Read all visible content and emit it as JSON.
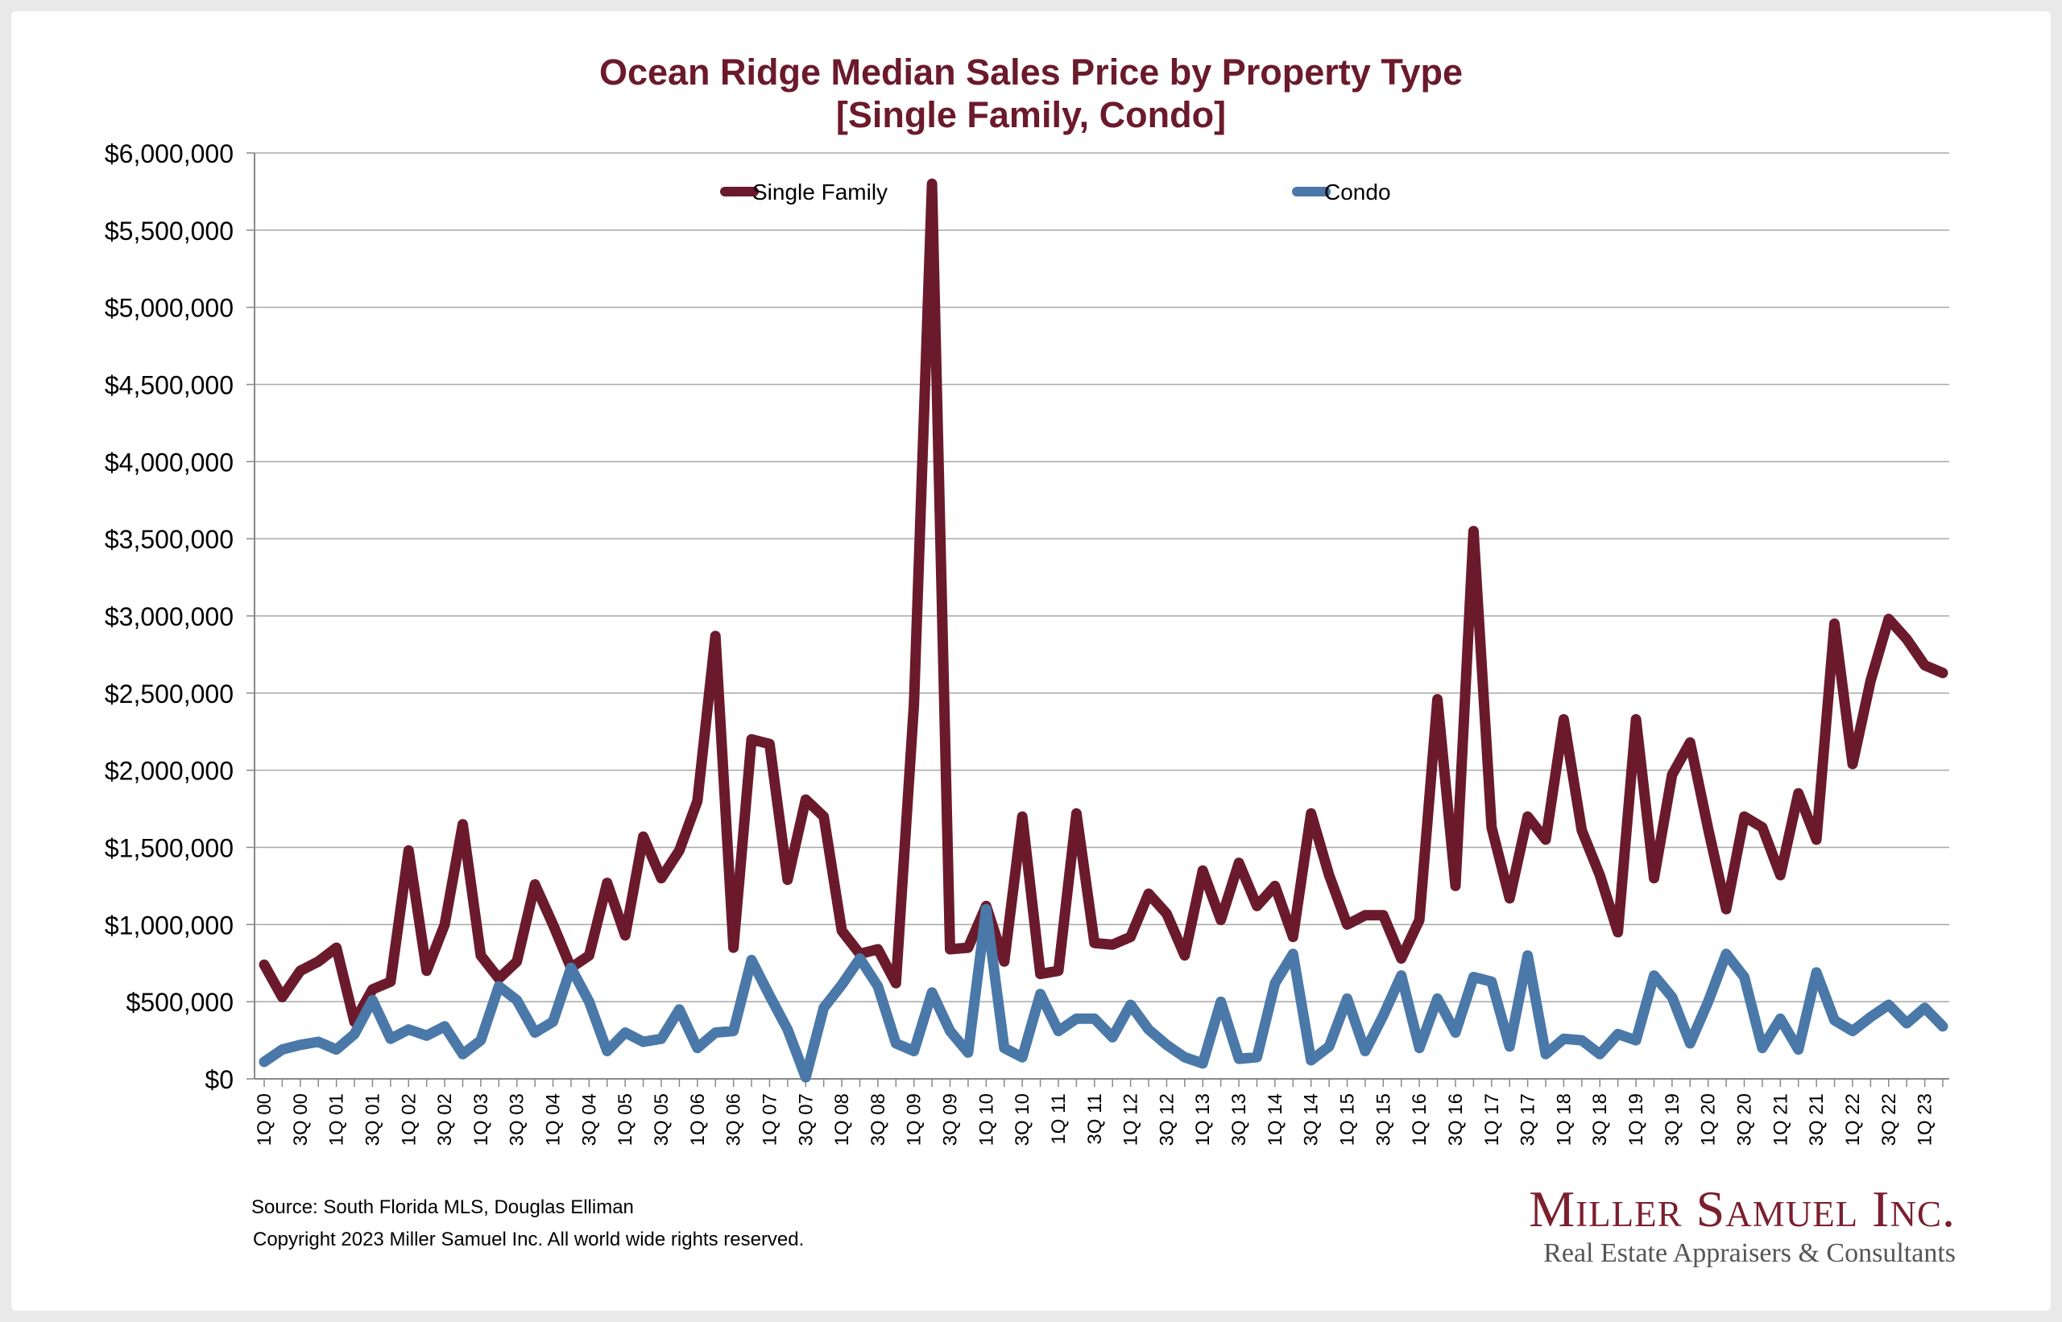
{
  "chart_data": {
    "type": "line",
    "title": "Ocean Ridge Median Sales Price by Property Type",
    "subtitle": "[Single Family, Condo]",
    "ylim": [
      0,
      6000000
    ],
    "yticks": [
      "$0",
      "$500,000",
      "$1,000,000",
      "$1,500,000",
      "$2,000,000",
      "$2,500,000",
      "$3,000,000",
      "$3,500,000",
      "$4,000,000",
      "$4,500,000",
      "$5,000,000",
      "$5,500,000",
      "$6,000,000"
    ],
    "ytick_values": [
      0,
      500000,
      1000000,
      1500000,
      2000000,
      2500000,
      3000000,
      3500000,
      4000000,
      4500000,
      5000000,
      5500000,
      6000000
    ],
    "xtick_labels": [
      "1Q 00",
      "3Q 00",
      "1Q 01",
      "3Q 01",
      "1Q 02",
      "3Q 02",
      "1Q 03",
      "3Q 03",
      "1Q 04",
      "3Q 04",
      "1Q 05",
      "3Q 05",
      "1Q 06",
      "3Q 06",
      "1Q 07",
      "3Q 07",
      "1Q 08",
      "3Q 08",
      "1Q 09",
      "3Q 09",
      "1Q 10",
      "3Q 10",
      "1Q 11",
      "3Q 11",
      "1Q 12",
      "3Q 12",
      "1Q 13",
      "3Q 13",
      "1Q 14",
      "3Q 14",
      "1Q 15",
      "3Q 15",
      "1Q 16",
      "3Q 16",
      "1Q 17",
      "3Q 17",
      "1Q 18",
      "3Q 18",
      "1Q 19",
      "3Q 19",
      "1Q 20",
      "3Q 20",
      "1Q 21",
      "3Q 21",
      "1Q 22",
      "3Q 22",
      "1Q 23"
    ],
    "grid": true,
    "legend_position": "top",
    "series": [
      {
        "name": "Single Family",
        "color": "#6b1a2c",
        "values": [
          740000,
          530000,
          700000,
          760000,
          850000,
          370000,
          580000,
          630000,
          1480000,
          700000,
          1000000,
          1650000,
          800000,
          650000,
          760000,
          1260000,
          1000000,
          720000,
          800000,
          1270000,
          930000,
          1570000,
          1300000,
          1480000,
          1800000,
          2870000,
          850000,
          2200000,
          2170000,
          1290000,
          1810000,
          1700000,
          960000,
          810000,
          840000,
          620000,
          2430000,
          5800000,
          840000,
          850000,
          1120000,
          760000,
          1700000,
          680000,
          700000,
          1720000,
          880000,
          870000,
          920000,
          1200000,
          1070000,
          800000,
          1350000,
          1030000,
          1400000,
          1120000,
          1250000,
          920000,
          1720000,
          1320000,
          1000000,
          1060000,
          1060000,
          780000,
          1030000,
          2460000,
          1250000,
          3550000,
          1630000,
          1170000,
          1700000,
          1550000,
          2330000,
          1610000,
          1320000,
          950000,
          2330000,
          1300000,
          1970000,
          2180000,
          1620000,
          1100000,
          1700000,
          1630000,
          1320000,
          1850000,
          1550000,
          2950000,
          2040000,
          2580000,
          2980000,
          2850000,
          2680000,
          2630000
        ],
        "values_by_quarter": "quarterly from 1Q 00 to 2Q 23"
      },
      {
        "name": "Condo",
        "color": "#4a78a8",
        "values": [
          110000,
          190000,
          220000,
          240000,
          190000,
          290000,
          510000,
          260000,
          320000,
          280000,
          340000,
          160000,
          250000,
          600000,
          510000,
          300000,
          370000,
          720000,
          500000,
          180000,
          300000,
          240000,
          260000,
          450000,
          200000,
          300000,
          310000,
          770000,
          540000,
          320000,
          10000,
          460000,
          610000,
          780000,
          600000,
          230000,
          180000,
          560000,
          310000,
          170000,
          1100000,
          200000,
          140000,
          550000,
          310000,
          390000,
          390000,
          270000,
          480000,
          320000,
          220000,
          140000,
          100000,
          500000,
          130000,
          140000,
          620000,
          810000,
          120000,
          210000,
          520000,
          180000,
          410000,
          670000,
          200000,
          520000,
          300000,
          660000,
          630000,
          210000,
          800000,
          160000,
          260000,
          250000,
          160000,
          290000,
          250000,
          670000,
          530000,
          230000,
          500000,
          810000,
          660000,
          200000,
          390000,
          190000,
          690000,
          380000,
          310000,
          400000,
          480000,
          360000,
          460000,
          340000
        ]
      }
    ],
    "annotations": [
      "Source: South Florida MLS, Douglas Elliman",
      "Copyright 2023 Miller Samuel Inc.  All world wide rights reserved."
    ]
  },
  "footer": {
    "source": "Source: South Florida MLS, Douglas Elliman",
    "copyright": "Copyright 2023 Miller Samuel Inc.  All world wide rights reserved."
  },
  "logo": {
    "name": "Miller Samuel Inc.",
    "tagline": "Real Estate Appraisers & Consultants"
  }
}
